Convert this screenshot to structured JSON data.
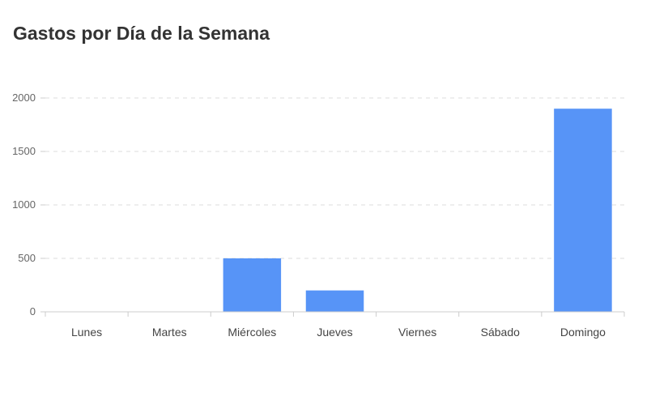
{
  "chart_data": {
    "type": "bar",
    "title": "Gastos por Día de la Semana",
    "xlabel": "",
    "ylabel": "",
    "categories": [
      "Lunes",
      "Martes",
      "Miércoles",
      "Jueves",
      "Viernes",
      "Sábado",
      "Domingo"
    ],
    "series": [
      {
        "values": [
          0,
          0,
          500,
          200,
          0,
          0,
          1900
        ]
      }
    ],
    "ylim": [
      0,
      2000
    ],
    "yticks": [
      "0",
      "500",
      "1000",
      "1500",
      "2000"
    ],
    "grid": true,
    "legend": "none",
    "colors": {
      "bar": "#5794F7",
      "grid": "#dddddd",
      "axis": "#cccccc"
    }
  }
}
